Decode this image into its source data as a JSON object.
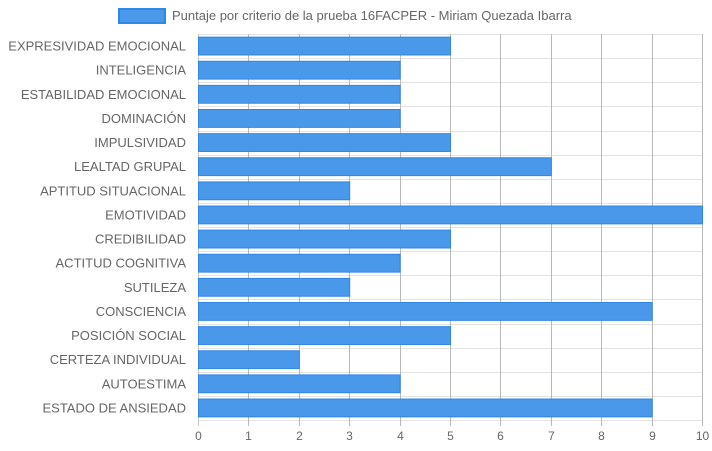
{
  "legend": {
    "label": "Puntaje por criterio de la prueba 16FACPER - Miriam Quezada Ibarra"
  },
  "colors": {
    "bar_fill": "#4a98ea",
    "bar_border": "#2f86e6",
    "grid": "#e3e3e3",
    "grid_strong": "#c8c8c8",
    "text": "#666666"
  },
  "chart_data": {
    "type": "bar",
    "orientation": "horizontal",
    "categories": [
      "EXPRESIVIDAD EMOCIONAL",
      "INTELIGENCIA",
      "ESTABILIDAD EMOCIONAL",
      "DOMINACIÓN",
      "IMPULSIVIDAD",
      "LEALTAD GRUPAL",
      "APTITUD SITUACIONAL",
      "EMOTIVIDAD",
      "CREDIBILIDAD",
      "ACTITUD COGNITIVA",
      "SUTILEZA",
      "CONSCIENCIA",
      "POSICIÓN SOCIAL",
      "CERTEZA INDIVIDUAL",
      "AUTOESTIMA",
      "ESTADO DE ANSIEDAD"
    ],
    "series": [
      {
        "name": "Puntaje por criterio de la prueba 16FACPER - Miriam Quezada Ibarra",
        "values": [
          5,
          4,
          4,
          4,
          5,
          7,
          3,
          10,
          5,
          4,
          3,
          9,
          5,
          2,
          4,
          9
        ]
      }
    ],
    "xlim": [
      0,
      10
    ],
    "xticks": [
      "0",
      "1",
      "2",
      "3",
      "4",
      "5",
      "6",
      "7",
      "8",
      "9",
      "10"
    ],
    "legend_position": "top",
    "grid": true
  }
}
